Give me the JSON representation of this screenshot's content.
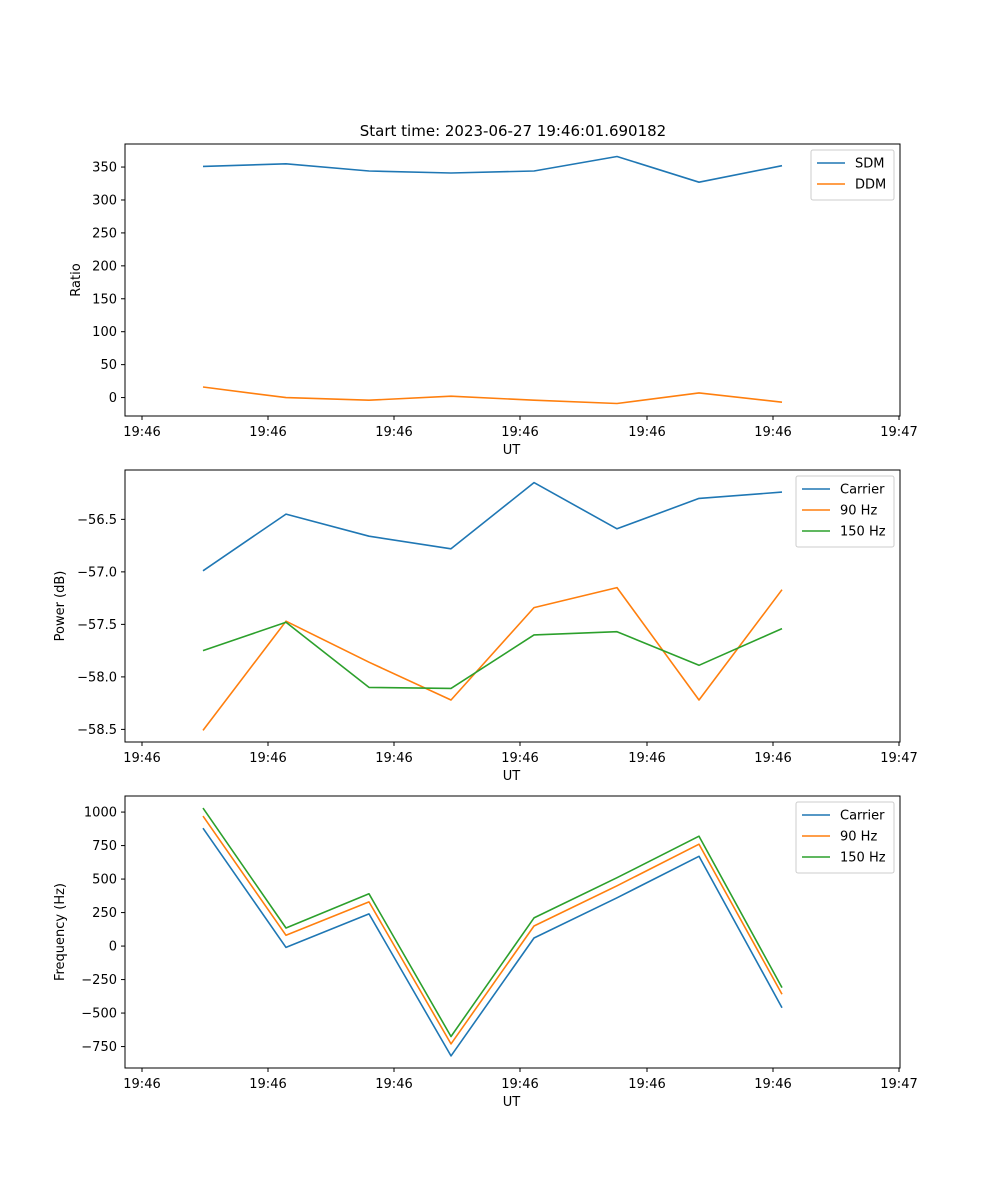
{
  "title": "Start time: 2023-06-27 19:46:01.690182",
  "colors": {
    "blue": "#1f77b4",
    "orange": "#ff7f0e",
    "green": "#2ca02c"
  },
  "chart_data": [
    {
      "type": "line",
      "title": "Start time: 2023-06-27 19:46:01.690182",
      "xlabel": "UT",
      "ylabel": "Ratio",
      "x_ticks": [
        "19:46",
        "19:46",
        "19:46",
        "19:46",
        "19:46",
        "19:46",
        "19:46"
      ],
      "x_last_tick": "19:47",
      "y_ticks": [
        0,
        50,
        100,
        150,
        200,
        250,
        300,
        350
      ],
      "ylim": [
        -28,
        385
      ],
      "legend": "top-right",
      "series": [
        {
          "name": "SDM",
          "color": "#1f77b4",
          "values": [
            351,
            355,
            344,
            341,
            344,
            366,
            327,
            352
          ]
        },
        {
          "name": "DDM",
          "color": "#ff7f0e",
          "values": [
            16,
            0,
            -4,
            2,
            -4,
            -9,
            7,
            -7
          ]
        }
      ]
    },
    {
      "type": "line",
      "xlabel": "UT",
      "ylabel": "Power (dB)",
      "x_ticks": [
        "19:46",
        "19:46",
        "19:46",
        "19:46",
        "19:46",
        "19:46",
        "19:46"
      ],
      "x_last_tick": "19:47",
      "y_ticks": [
        -56.5,
        -57.0,
        -57.5,
        -58.0,
        -58.5
      ],
      "y_tick_labels": [
        "−56.5",
        "−57.0",
        "−57.5",
        "−58.0",
        "−58.5"
      ],
      "ylim": [
        -58.62,
        -56.03
      ],
      "legend": "top-right",
      "series": [
        {
          "name": "Carrier",
          "color": "#1f77b4",
          "values": [
            -56.99,
            -56.45,
            -56.66,
            -56.78,
            -56.15,
            -56.59,
            -56.3,
            -56.24
          ]
        },
        {
          "name": "90 Hz",
          "color": "#ff7f0e",
          "values": [
            -58.51,
            -57.47,
            -57.86,
            -58.22,
            -57.34,
            -57.15,
            -58.22,
            -57.17
          ]
        },
        {
          "name": "150 Hz",
          "color": "#2ca02c",
          "values": [
            -57.75,
            -57.48,
            -58.1,
            -58.11,
            -57.6,
            -57.57,
            -57.89,
            -57.54
          ]
        }
      ]
    },
    {
      "type": "line",
      "xlabel": "UT",
      "ylabel": "Frequency (Hz)",
      "x_ticks": [
        "19:46",
        "19:46",
        "19:46",
        "19:46",
        "19:46",
        "19:46",
        "19:46"
      ],
      "x_last_tick": "19:47",
      "y_ticks": [
        1000,
        750,
        500,
        250,
        0,
        -250,
        -500,
        -750
      ],
      "y_tick_labels": [
        "1000",
        "750",
        "500",
        "250",
        "0",
        "−250",
        "−500",
        "−750"
      ],
      "ylim": [
        -910,
        1120
      ],
      "legend": "top-right",
      "series": [
        {
          "name": "Carrier",
          "color": "#1f77b4",
          "values": [
            880,
            -10,
            240,
            -820,
            60,
            360,
            670,
            -460
          ]
        },
        {
          "name": "90 Hz",
          "color": "#ff7f0e",
          "values": [
            970,
            80,
            330,
            -730,
            150,
            450,
            760,
            -360
          ]
        },
        {
          "name": "150 Hz",
          "color": "#2ca02c",
          "values": [
            1030,
            135,
            390,
            -675,
            210,
            510,
            820,
            -310
          ]
        }
      ]
    }
  ]
}
